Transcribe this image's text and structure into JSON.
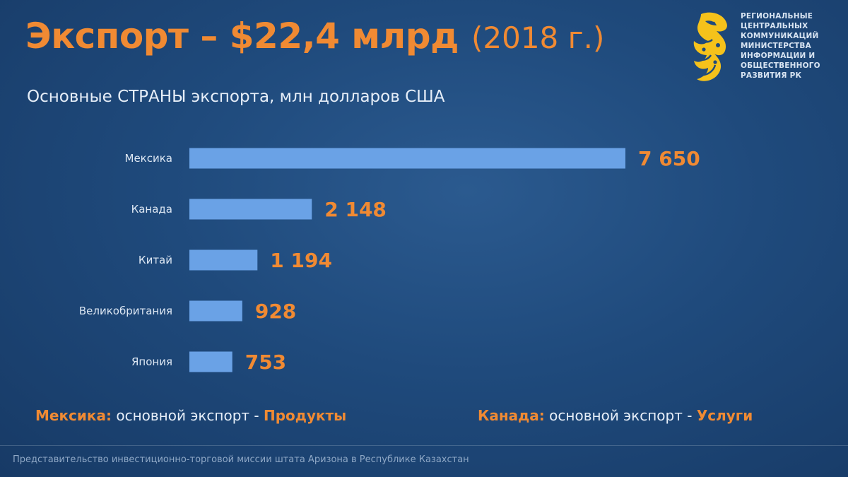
{
  "header": {
    "title_main": "Экспорт – $22,4 млрд",
    "title_year": "(2018 г.)",
    "subtitle": "Основные СТРАНЫ экспорта, млн долларов США"
  },
  "logo": {
    "icon": "snow-leopard-emblem-icon",
    "lines": [
      "РЕГИОНАЛЬНЫЕ",
      "ЦЕНТРАЛЬНЫХ",
      "КОММУНИКАЦИЙ",
      "МИНИСТЕРСТВА",
      "ИНФОРМАЦИИ И",
      "ОБЩЕСТВЕННОГО",
      "РАЗВИТИЯ РК"
    ]
  },
  "chart_data": {
    "type": "bar",
    "orientation": "horizontal",
    "title": "Основные СТРАНЫ экспорта, млн долларов США",
    "categories": [
      "Мексика",
      "Канада",
      "Китай",
      "Великобритания",
      "Япония"
    ],
    "values": [
      7650,
      2148,
      1194,
      928,
      753
    ],
    "value_labels": [
      "7 650",
      "2 148",
      "1 194",
      "928",
      "753"
    ],
    "bar_color": "#6aa2e6",
    "label_color": "#f08a33",
    "grid": false
  },
  "notes": {
    "left": {
      "country": "Мексика:",
      "text": "основной экспорт -",
      "highlight": "Продукты"
    },
    "right": {
      "country": "Канада:",
      "text": "основной экспорт -",
      "highlight": "Услуги"
    }
  },
  "footer": "Представительство инвестиционно-торговой миссии штата Аризона в Республике Казахстан",
  "colors": {
    "accent": "#f08a33",
    "background": "#1f4a7c",
    "bar": "#6aa2e6"
  }
}
